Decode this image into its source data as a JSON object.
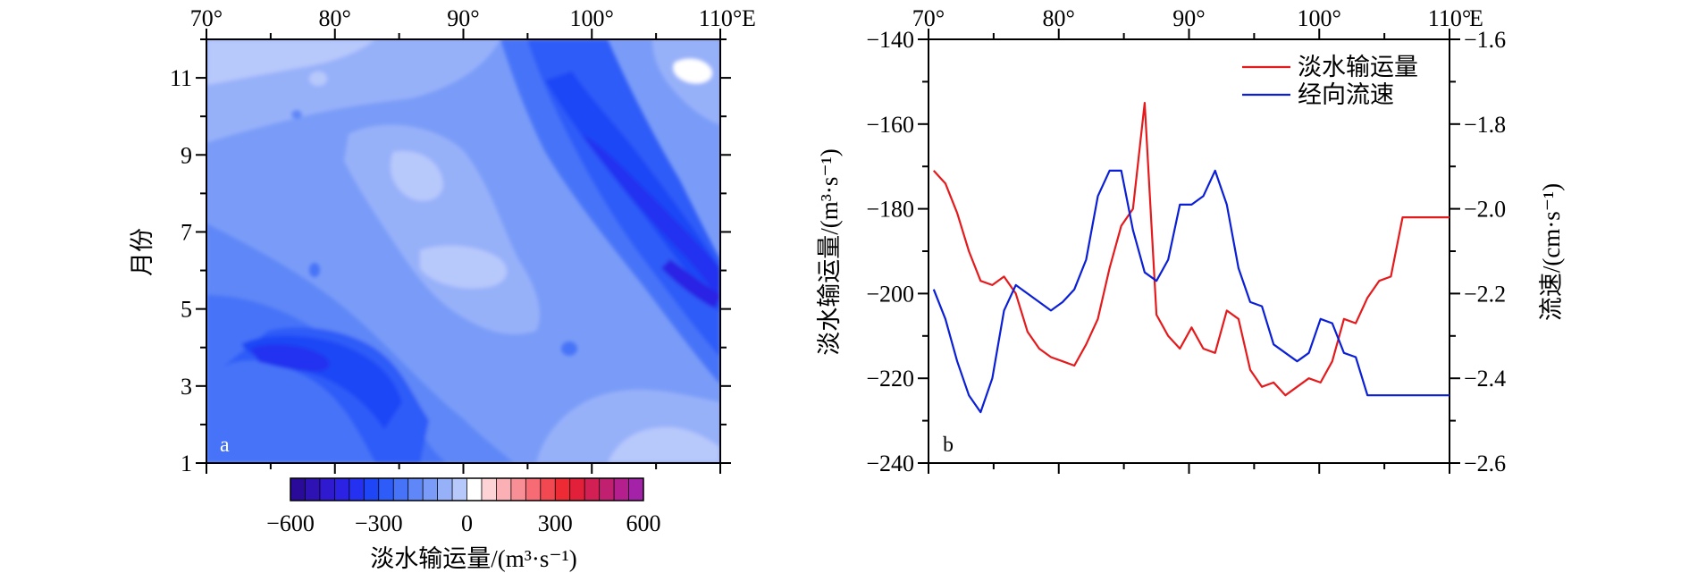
{
  "chart_data": [
    {
      "panel_label": "a",
      "type": "heatmap",
      "x_axis": {
        "ticks": [
          70,
          80,
          90,
          100,
          110
        ],
        "tick_labels": [
          "70°",
          "80°",
          "90°",
          "100°",
          "110°"
        ],
        "unit_label": "E",
        "range": [
          70,
          110
        ]
      },
      "y_axis": {
        "label": "月份",
        "ticks": [
          1,
          3,
          5,
          7,
          9,
          11
        ],
        "tick_labels": [
          "1",
          "3",
          "5",
          "7",
          "9",
          "11"
        ],
        "range": [
          1,
          12
        ]
      },
      "colorbar": {
        "label": "淡水输运量/(m³·s⁻¹)",
        "range": [
          -600,
          600
        ],
        "step": 50,
        "tick_values": [
          -600,
          -300,
          0,
          300,
          600
        ],
        "tick_labels": [
          "−600",
          "−300",
          "0",
          "300",
          "600"
        ],
        "colors": [
          "#2a0a99",
          "#2f12b4",
          "#2f1ad0",
          "#2b22e4",
          "#2431f0",
          "#1e46f6",
          "#2d5cf8",
          "#4673f8",
          "#5f87f7",
          "#7a9cf8",
          "#97b1f9",
          "#b7c8fb",
          "#ffffff",
          "#fdd3d6",
          "#fbb0b5",
          "#f98f96",
          "#f76b74",
          "#f24851",
          "#ee2a35",
          "#e2203a",
          "#d21f54",
          "#c11f70",
          "#b41f8d",
          "#a322a7"
        ]
      }
    },
    {
      "panel_label": "b",
      "type": "line",
      "x_axis": {
        "ticks": [
          70,
          80,
          90,
          100,
          110
        ],
        "tick_labels": [
          "70°",
          "80°",
          "90°",
          "100°",
          "110°"
        ],
        "unit_label": "E",
        "range": [
          70,
          110
        ]
      },
      "y_left": {
        "label": "淡水输运量/(m³·s⁻¹)",
        "range": [
          -240,
          -140
        ],
        "ticks": [
          -240,
          -220,
          -200,
          -180,
          -160,
          -140
        ],
        "tick_labels": [
          "−240",
          "−220",
          "−200",
          "−180",
          "−160",
          "−140"
        ]
      },
      "y_right": {
        "label": "流速/(cm·s⁻¹)",
        "range": [
          -2.6,
          -1.6
        ],
        "ticks": [
          -2.6,
          -2.4,
          -2.2,
          -2.0,
          -1.8,
          -1.6
        ],
        "tick_labels": [
          "−2.6",
          "−2.4",
          "−2.2",
          "−2.0",
          "−1.8",
          "−1.6"
        ]
      },
      "series": [
        {
          "name": "淡水输运量",
          "axis": "left",
          "color": "#e41a1c",
          "x": [
            70.4,
            71.3,
            72.2,
            73.1,
            74.0,
            74.9,
            75.8,
            76.7,
            77.6,
            78.5,
            79.4,
            80.3,
            81.2,
            82.1,
            83.0,
            83.9,
            84.8,
            85.7,
            86.6,
            87.5,
            88.4,
            89.3,
            90.2,
            91.1,
            92.0,
            92.9,
            93.8,
            94.7,
            95.6,
            96.5,
            97.4,
            98.3,
            99.2,
            100.1,
            101.0,
            101.9,
            102.8,
            103.7,
            104.6,
            105.5,
            106.4,
            107.3,
            108.2,
            109.1,
            110.0
          ],
          "values": [
            -171,
            -174,
            -181,
            -190,
            -197,
            -198,
            -196,
            -200,
            -209,
            -213,
            -215,
            -216,
            -217,
            -212,
            -206,
            -194,
            -184,
            -180,
            -155,
            -205,
            -210,
            -213,
            -208,
            -213,
            -214,
            -204,
            -206,
            -218,
            -222,
            -221,
            -224,
            -222,
            -220,
            -221,
            -216,
            -206,
            -207,
            -201,
            -197,
            -196,
            -182,
            -182,
            -182,
            -182,
            -182
          ]
        },
        {
          "name": "经向流速",
          "axis": "right",
          "color": "#0a1fd6",
          "x": [
            70.4,
            71.3,
            72.2,
            73.1,
            74.0,
            74.9,
            75.8,
            76.7,
            77.6,
            78.5,
            79.4,
            80.3,
            81.2,
            82.1,
            83.0,
            83.9,
            84.8,
            85.7,
            86.6,
            87.5,
            88.4,
            89.3,
            90.2,
            91.1,
            92.0,
            92.9,
            93.8,
            94.7,
            95.6,
            96.5,
            97.4,
            98.3,
            99.2,
            100.1,
            101.0,
            101.9,
            102.8,
            103.7,
            104.6,
            105.5,
            106.4,
            107.3,
            108.2,
            109.1,
            110.0
          ],
          "values": [
            -2.19,
            -2.26,
            -2.36,
            -2.44,
            -2.48,
            -2.4,
            -2.24,
            -2.18,
            -2.2,
            -2.22,
            -2.24,
            -2.22,
            -2.19,
            -2.12,
            -1.97,
            -1.91,
            -1.91,
            -2.05,
            -2.15,
            -2.17,
            -2.12,
            -1.99,
            -1.99,
            -1.97,
            -1.91,
            -1.99,
            -2.14,
            -2.22,
            -2.23,
            -2.32,
            -2.34,
            -2.36,
            -2.34,
            -2.26,
            -2.27,
            -2.34,
            -2.35,
            -2.44,
            -2.44,
            -2.44,
            -2.44,
            -2.44,
            -2.44,
            -2.44,
            -2.44
          ]
        }
      ]
    }
  ]
}
